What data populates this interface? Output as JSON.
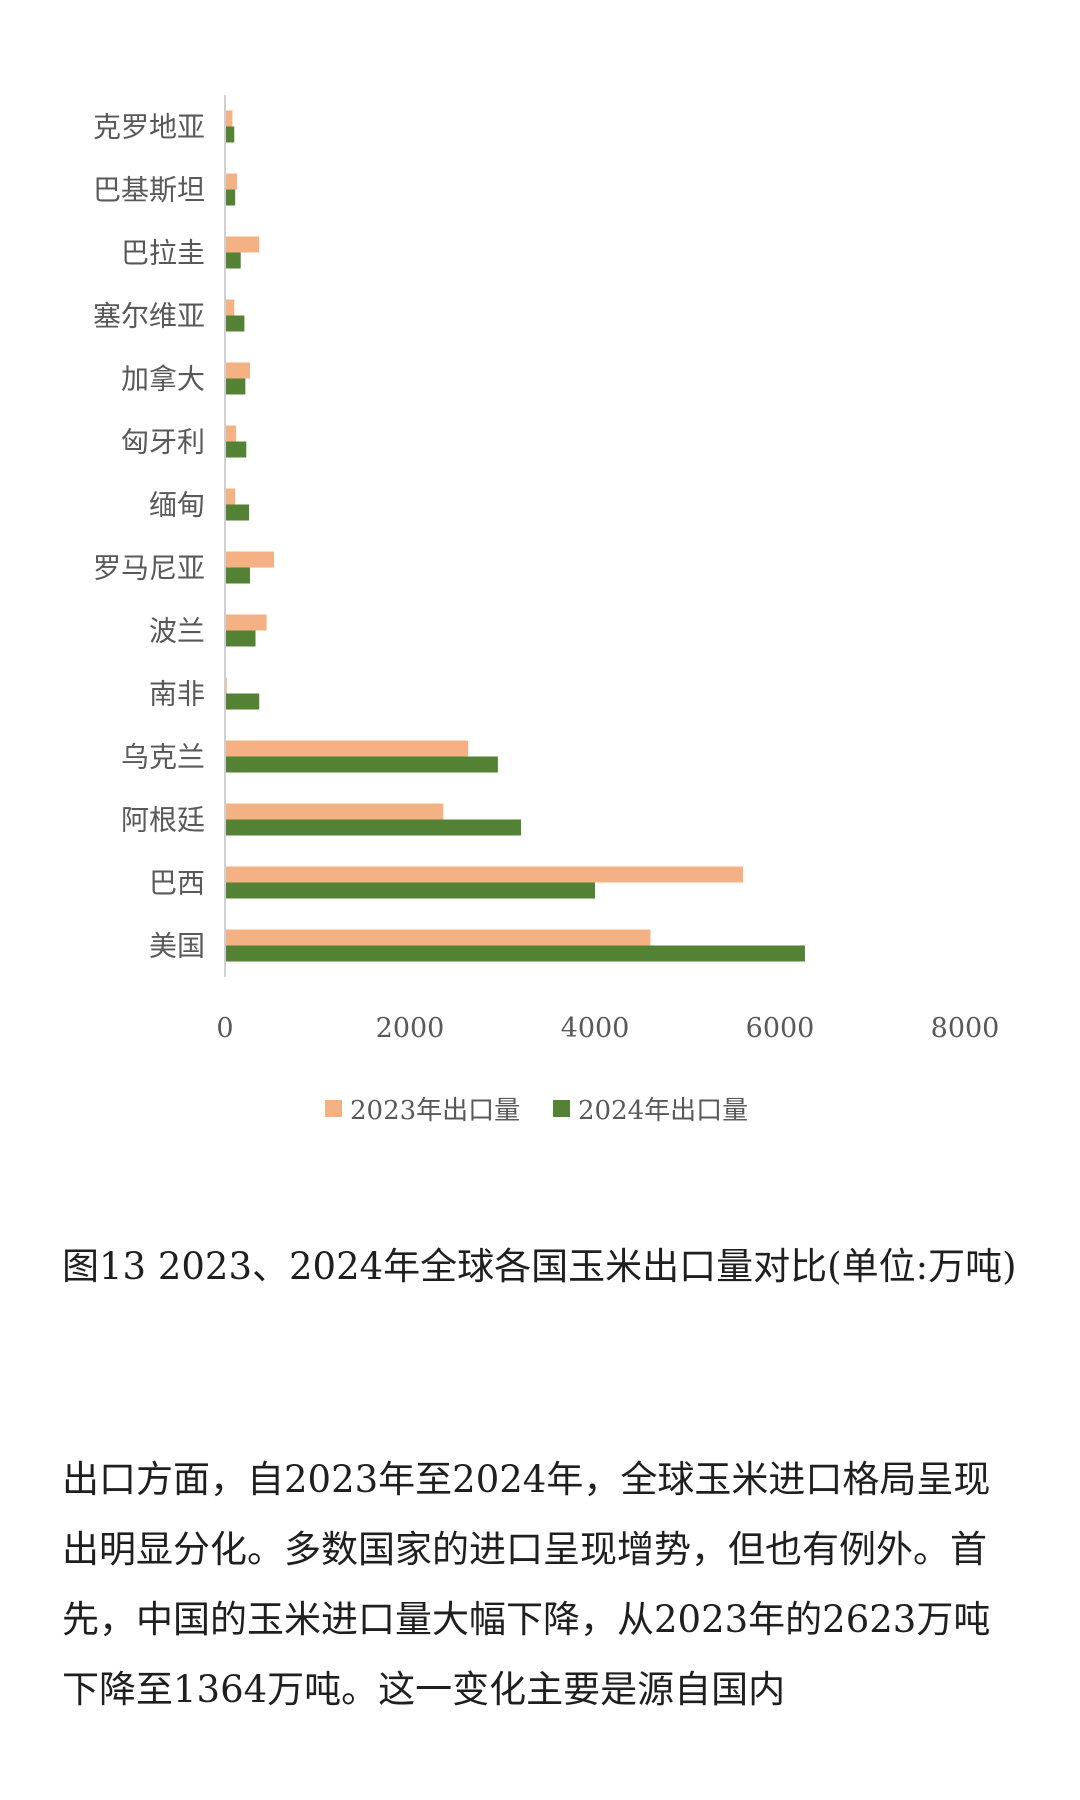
{
  "chart_data": {
    "type": "bar",
    "orientation": "horizontal",
    "categories": [
      "克罗地亚",
      "巴基斯坦",
      "巴拉圭",
      "塞尔维亚",
      "加拿大",
      "匈牙利",
      "缅甸",
      "罗马尼亚",
      "波兰",
      "南非",
      "乌克兰",
      "阿根廷",
      "巴西",
      "美国"
    ],
    "series": [
      {
        "name": "2023年出口量",
        "color": "#F4B183",
        "values": [
          80,
          130,
          370,
          100,
          270,
          120,
          110,
          530,
          450,
          20,
          2630,
          2360,
          5600,
          4600
        ]
      },
      {
        "name": "2024年出口量",
        "color": "#548235",
        "values": [
          100,
          110,
          170,
          210,
          220,
          230,
          260,
          270,
          330,
          370,
          2950,
          3200,
          4000,
          6270
        ]
      }
    ],
    "xlim": [
      0,
      8000
    ],
    "xticks": [
      "0",
      "2000",
      "4000",
      "6000",
      "8000"
    ],
    "grid": false,
    "legend_position": "bottom"
  },
  "caption": "图13 2023、2024年全球各国玉米出口量对比(单位:万吨)",
  "body_text": "出口方面，自2023年至2024年，全球玉米进口格局呈现出明显分化。多数国家的进口呈现增势，但也有例外。首先，中国的玉米进口量大幅下降，从2023年的2623万吨下降至1364万吨。这一变化主要是源自国内"
}
